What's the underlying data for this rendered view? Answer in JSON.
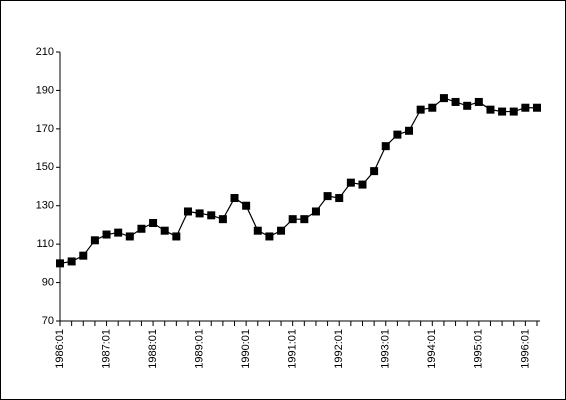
{
  "chart_data": {
    "type": "line",
    "categories": [
      "1986:01",
      null,
      null,
      null,
      "1987:01",
      null,
      null,
      null,
      "1988:01",
      null,
      null,
      null,
      "1989:01",
      null,
      null,
      null,
      "1990:01",
      null,
      null,
      null,
      "1991:01",
      null,
      null,
      null,
      "1992:01",
      null,
      null,
      null,
      "1993:01",
      null,
      null,
      null,
      "1994:01",
      null,
      null,
      null,
      "1995:01",
      null,
      null,
      null,
      "1996:01",
      null
    ],
    "values": [
      100,
      101,
      104,
      112,
      115,
      116,
      114,
      118,
      121,
      117,
      114,
      127,
      126,
      125,
      123,
      134,
      130,
      117,
      114,
      117,
      123,
      123,
      127,
      135,
      134,
      142,
      141,
      148,
      161,
      167,
      169,
      180,
      181,
      186,
      184,
      182,
      184,
      180,
      179,
      179,
      181,
      181
    ],
    "color": "#000000",
    "ylim": [
      70,
      210
    ],
    "yticks": [
      70,
      90,
      110,
      130,
      150,
      170,
      190,
      210
    ],
    "grid": false
  }
}
